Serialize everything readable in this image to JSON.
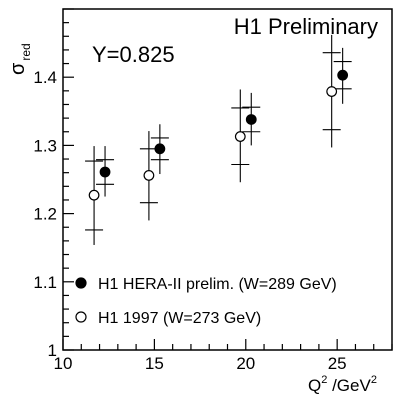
{
  "chart_data": {
    "type": "scatter",
    "title": "H1 Preliminary",
    "annotation": "Y=0.825",
    "xlabel": {
      "main": "Q",
      "sup": "2",
      "rest": " /GeV",
      "sup2": "2"
    },
    "ylabel": {
      "main": "σ",
      "sub": "red"
    },
    "xlim": [
      10,
      28
    ],
    "ylim": [
      1.0,
      1.5
    ],
    "xticks": [
      10,
      15,
      20,
      25
    ],
    "yticks": [
      1.0,
      1.1,
      1.2,
      1.3,
      1.4
    ],
    "xtick_labels": [
      "10",
      "15",
      "20",
      "25"
    ],
    "ytick_labels": [
      "1",
      "1.1",
      "1.2",
      "1.3",
      "1.4"
    ],
    "legend_position": "bottom-left",
    "series": [
      {
        "name": "H1 HERA-II prelim. (W=289 GeV)",
        "marker": "filled-circle",
        "points": [
          {
            "x": 12.3,
            "y": 1.261,
            "inner_lo": 1.243,
            "inner_hi": 1.279,
            "outer_lo": 1.225,
            "outer_hi": 1.299
          },
          {
            "x": 15.3,
            "y": 1.295,
            "inner_lo": 1.279,
            "inner_hi": 1.311,
            "outer_lo": 1.258,
            "outer_hi": 1.331
          },
          {
            "x": 20.3,
            "y": 1.338,
            "inner_lo": 1.32,
            "inner_hi": 1.356,
            "outer_lo": 1.3,
            "outer_hi": 1.377
          },
          {
            "x": 25.3,
            "y": 1.403,
            "inner_lo": 1.383,
            "inner_hi": 1.423,
            "outer_lo": 1.361,
            "outer_hi": 1.443
          }
        ]
      },
      {
        "name": "H1 1997 (W=273 GeV)",
        "marker": "open-circle",
        "points": [
          {
            "x": 11.7,
            "y": 1.227,
            "inner_lo": 1.176,
            "inner_hi": 1.277,
            "outer_lo": 1.154,
            "outer_hi": 1.299
          },
          {
            "x": 14.7,
            "y": 1.256,
            "inner_lo": 1.216,
            "inner_hi": 1.295,
            "outer_lo": 1.19,
            "outer_hi": 1.321
          },
          {
            "x": 19.7,
            "y": 1.313,
            "inner_lo": 1.272,
            "inner_hi": 1.355,
            "outer_lo": 1.246,
            "outer_hi": 1.382
          },
          {
            "x": 24.7,
            "y": 1.379,
            "inner_lo": 1.323,
            "inner_hi": 1.436,
            "outer_lo": 1.297,
            "outer_hi": 1.462
          }
        ]
      }
    ]
  }
}
